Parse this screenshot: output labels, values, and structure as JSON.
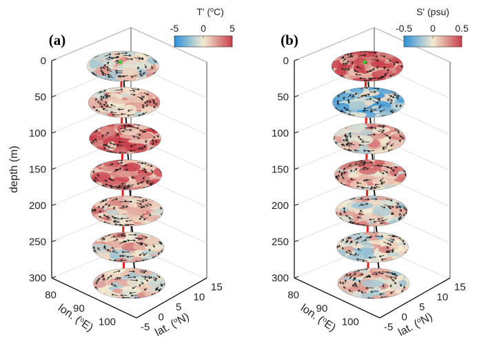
{
  "chart_data": [
    {
      "type": "3d-stacked-contour",
      "panel_label": "(a)",
      "variable": "temperature anomaly",
      "colorbar": {
        "title_prefix": "T' (",
        "title_sup": "o",
        "title_suffix": "C)",
        "ticks": [
          "-5",
          "0",
          "5"
        ],
        "range": [
          -5,
          5
        ],
        "colormap": "blue-white-red"
      },
      "zlabel": "depth (m)",
      "z_ticks": [
        "0",
        "50",
        "100",
        "150",
        "200",
        "250",
        "300"
      ],
      "xlabel_prefix": "lon. (",
      "xlabel_sup": "o",
      "xlabel_suffix": "E)",
      "x_ticks": [
        "80",
        "90",
        "100"
      ],
      "ylabel_prefix": "lat. (",
      "ylabel_sup": "o",
      "ylabel_suffix": "N)",
      "y_ticks": [
        "-5",
        "0",
        "5",
        "10",
        "15"
      ],
      "layer_depths_m": [
        0,
        50,
        100,
        150,
        200,
        250,
        300
      ],
      "layer_mean_anomaly": [
        0.5,
        1.2,
        3.2,
        2.6,
        1.4,
        0.6,
        0.2
      ]
    },
    {
      "type": "3d-stacked-contour",
      "panel_label": "(b)",
      "variable": "salinity anomaly",
      "colorbar": {
        "title_prefix": "S' (psu)",
        "title_sup": "",
        "title_suffix": "",
        "ticks": [
          "-0.5",
          "0",
          "0.5"
        ],
        "range": [
          -0.5,
          0.5
        ],
        "colormap": "blue-white-red"
      },
      "zlabel": "",
      "z_ticks": [
        "0",
        "50",
        "100",
        "150",
        "200",
        "250",
        "300"
      ],
      "xlabel_prefix": "lon. (",
      "xlabel_sup": "o",
      "xlabel_suffix": "E)",
      "x_ticks": [
        "80",
        "90",
        "100"
      ],
      "ylabel_prefix": "lat. (",
      "ylabel_sup": "o",
      "ylabel_suffix": "N)",
      "y_ticks": [
        "-5",
        "0",
        "5",
        "10",
        "15"
      ],
      "layer_depths_m": [
        0,
        50,
        100,
        150,
        200,
        250,
        300
      ],
      "layer_mean_anomaly": [
        0.3,
        -0.2,
        0.1,
        0.15,
        0.05,
        0.02,
        0.02
      ]
    }
  ],
  "colors": {
    "cold": "#2b8fd8",
    "neutral": "#f4ecd3",
    "warm": "#c73e4a",
    "axis_line": "#111111",
    "red_line": "#e8201c",
    "black_line": "#111111",
    "marker": "#22dd22"
  }
}
